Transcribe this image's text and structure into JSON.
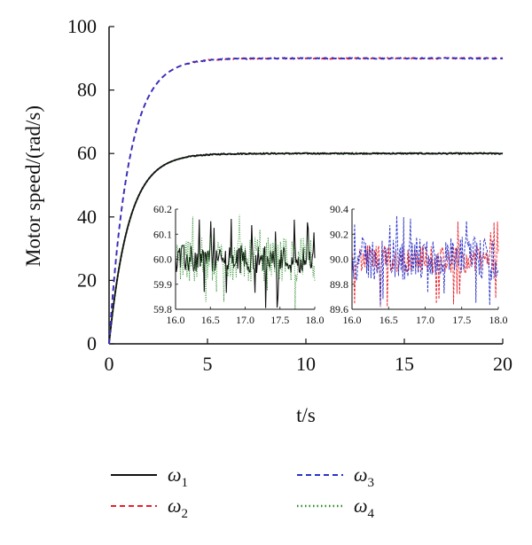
{
  "chart_data": {
    "type": "line",
    "xlabel": "t/s",
    "ylabel": "Motor speed/(rad/s)",
    "xlim": [
      0,
      20
    ],
    "ylim": [
      0,
      100
    ],
    "xticks": [
      "0",
      "5",
      "10",
      "15",
      "20"
    ],
    "yticks": [
      "0",
      "20",
      "40",
      "60",
      "80",
      "100"
    ],
    "grid": false,
    "legend_position": "bottom",
    "series": [
      {
        "name": "ω1",
        "legend_symbol": "ω",
        "legend_sub": "1",
        "color": "#111111",
        "style": "solid",
        "final_value": 60,
        "time_constant": 1.0
      },
      {
        "name": "ω2",
        "legend_symbol": "ω",
        "legend_sub": "2",
        "color": "#e8202a",
        "style": "dashed",
        "final_value": 90,
        "time_constant": 1.0
      },
      {
        "name": "ω3",
        "legend_symbol": "ω",
        "legend_sub": "3",
        "color": "#2a32c8",
        "style": "dashed",
        "final_value": 90,
        "time_constant": 1.0
      },
      {
        "name": "ω4",
        "legend_symbol": "ω",
        "legend_sub": "4",
        "color": "#2e8b2e",
        "style": "dotted",
        "final_value": 60,
        "time_constant": 1.0
      }
    ],
    "insets": [
      {
        "name": "inset-60",
        "xlim": [
          16.0,
          18.0
        ],
        "ylim": [
          59.8,
          60.2
        ],
        "xticks": [
          "16.0",
          "16.5",
          "17.0",
          "17.5",
          "18.0"
        ],
        "yticks": [
          "59.8",
          "59.9",
          "60.0",
          "60.1",
          "60.2"
        ],
        "series": [
          "ω1",
          "ω4"
        ],
        "center": 60.0
      },
      {
        "name": "inset-90",
        "xlim": [
          16.0,
          18.0
        ],
        "ylim": [
          89.6,
          90.4
        ],
        "xticks": [
          "16.0",
          "16.5",
          "17.0",
          "17.5",
          "18.0"
        ],
        "yticks": [
          "89.6",
          "89.8",
          "90.0",
          "90.2",
          "90.4"
        ],
        "series": [
          "ω2",
          "ω3"
        ],
        "center": 90.0
      }
    ]
  }
}
